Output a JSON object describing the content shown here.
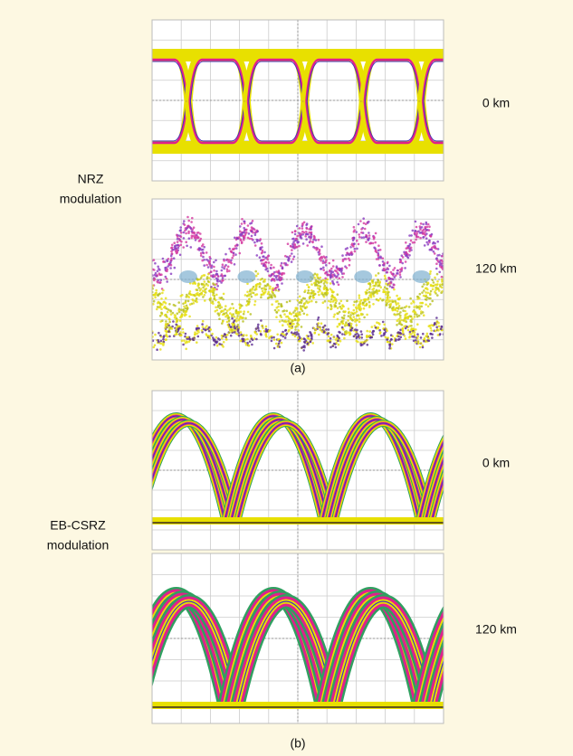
{
  "groups": [
    {
      "label_lines": [
        "NRZ",
        "modulation"
      ],
      "panels": [
        {
          "distance": "0 km"
        },
        {
          "distance": "120 km"
        }
      ],
      "caption": "(a)"
    },
    {
      "label_lines": [
        "EB-CSRZ",
        "modulation"
      ],
      "panels": [
        {
          "distance": "0 km"
        },
        {
          "distance": "120 km"
        }
      ],
      "caption": "(b)"
    }
  ]
}
